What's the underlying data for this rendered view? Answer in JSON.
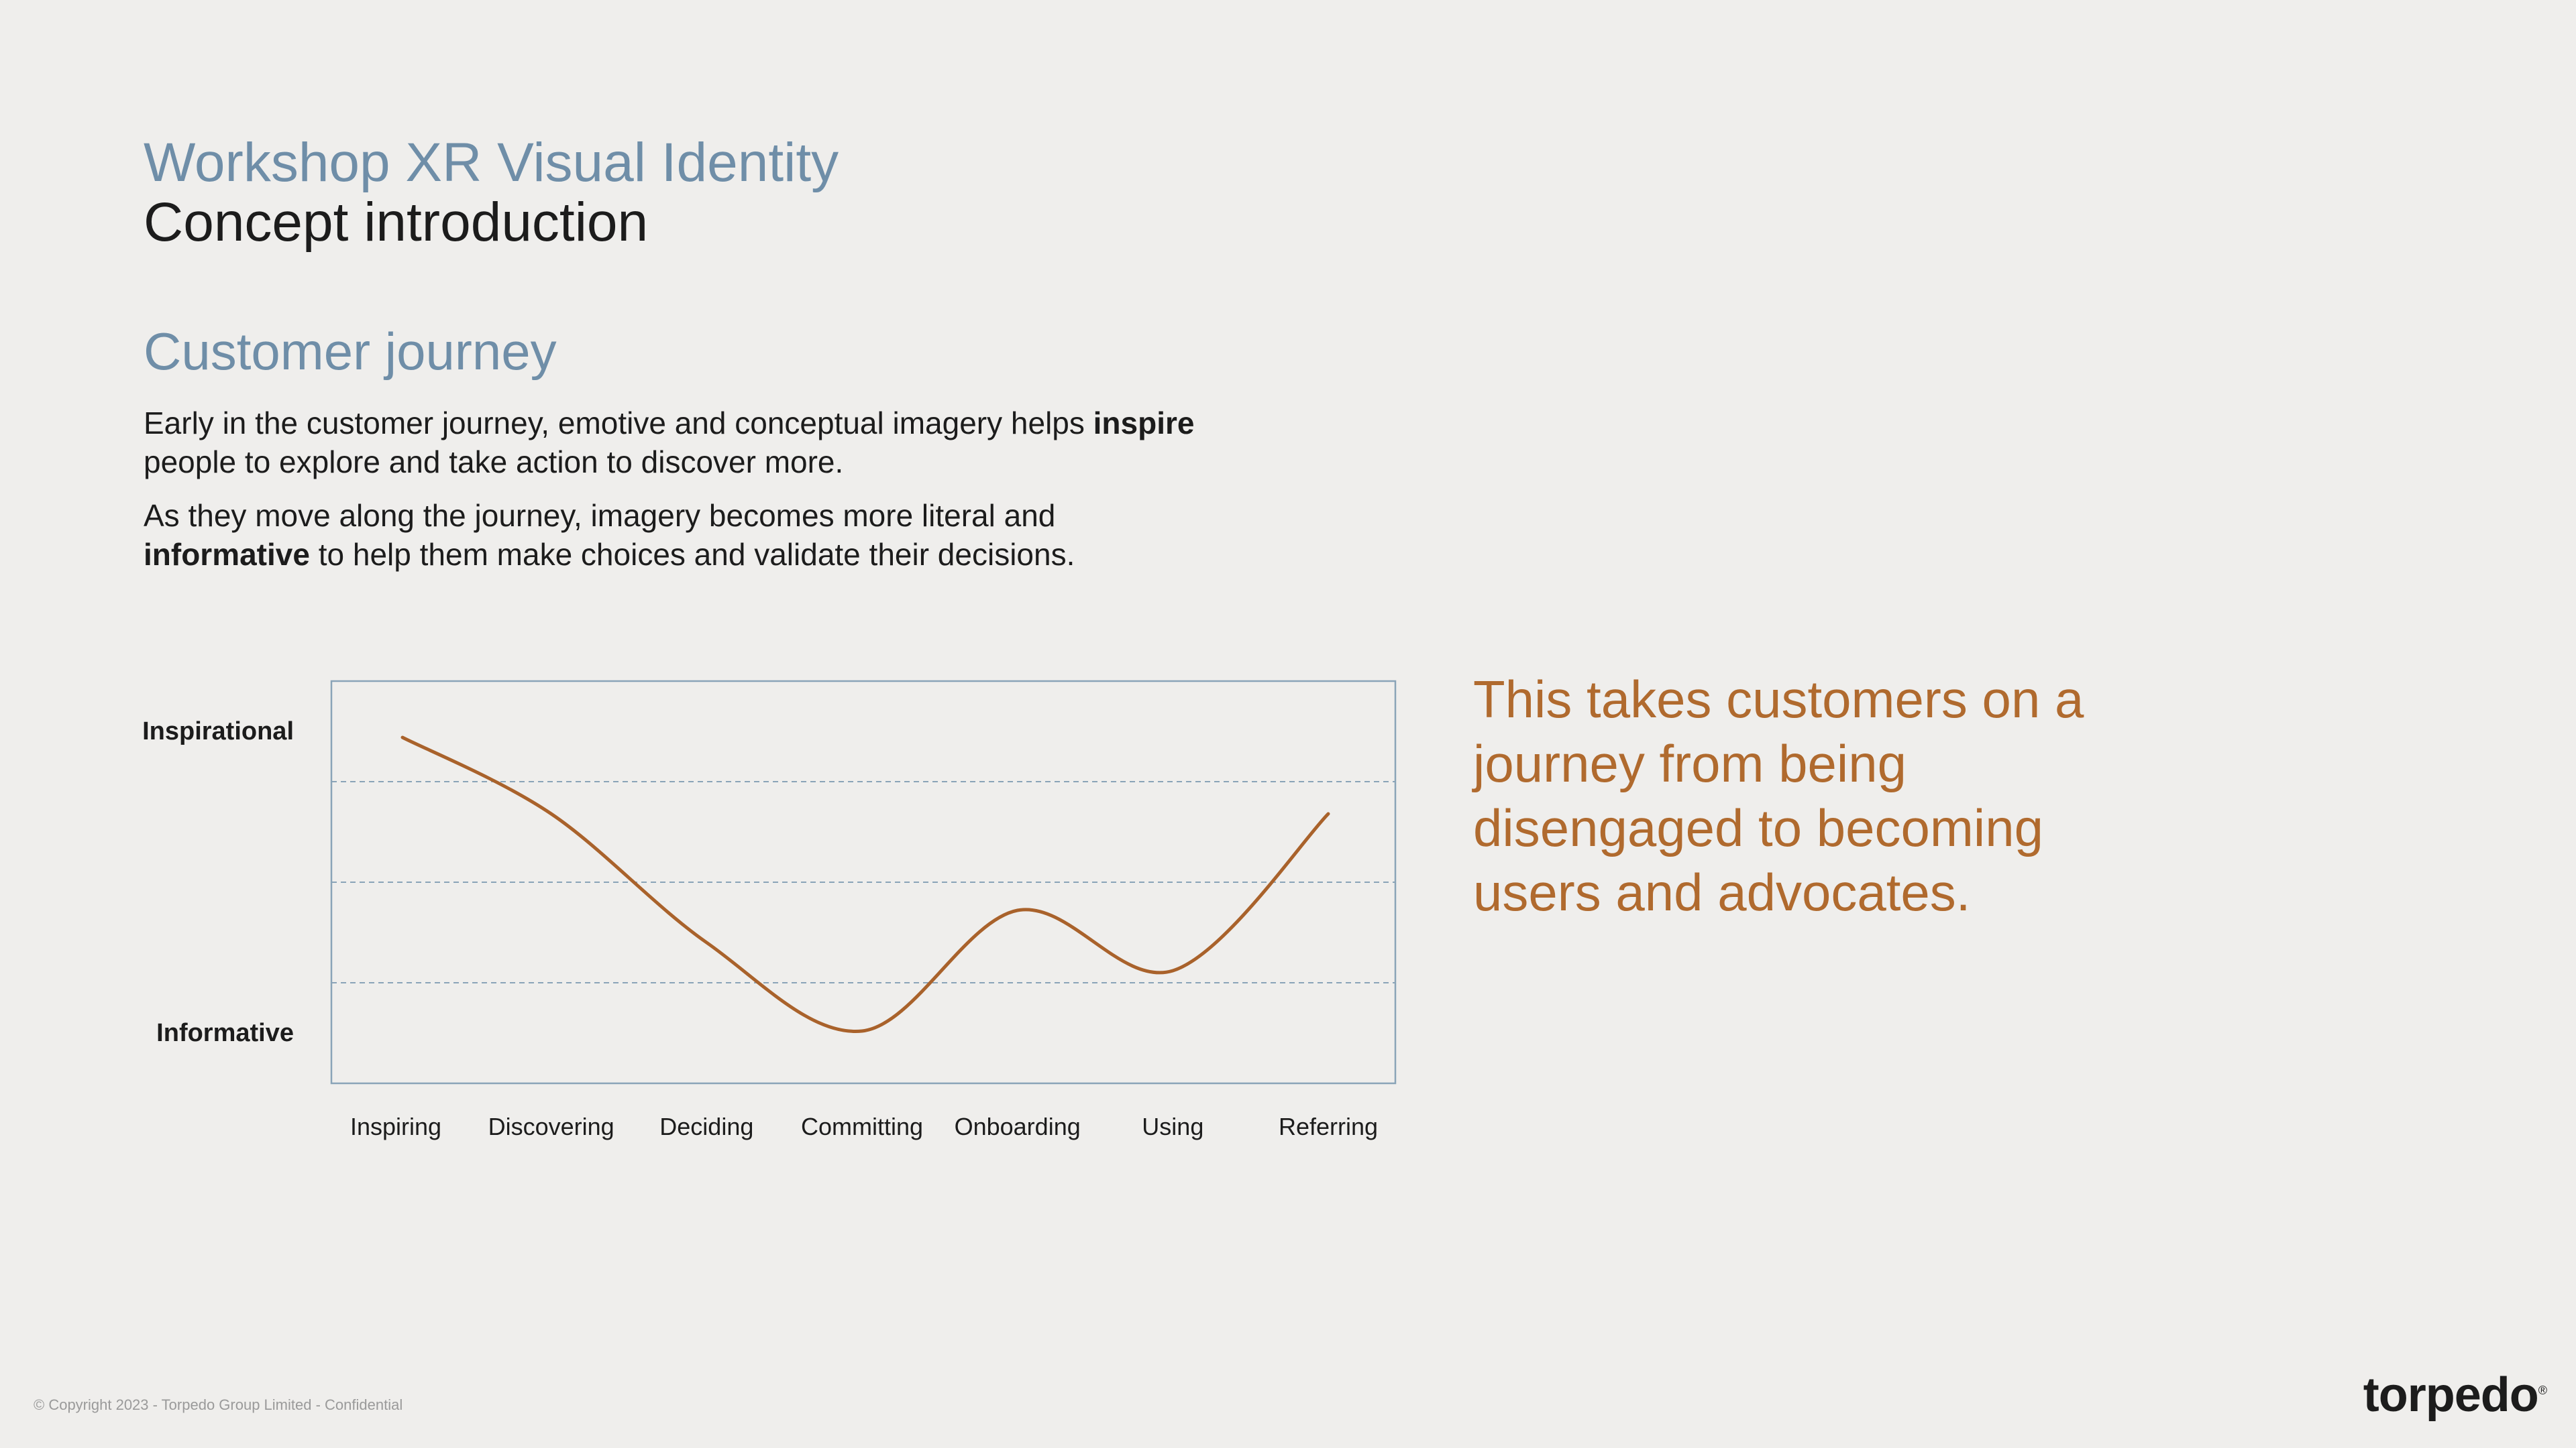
{
  "header": {
    "title": "Workshop XR Visual Identity",
    "subtitle": "Concept introduction"
  },
  "section": {
    "heading": "Customer journey",
    "para1_pre": "Early in the customer journey, emotive and conceptual imagery helps ",
    "para1_bold": "inspire",
    "para1_post": " people to explore and take action to discover more.",
    "para2_bold": "informative",
    "para2_pre": "As they move along the journey, imagery becomes more literal and ",
    "para2_post": " to help them make choices and validate their decisions."
  },
  "callout": "This takes customers on a journey from being disengaged to becoming users and advocates.",
  "chart_data": {
    "type": "line",
    "categories": [
      "Inspiring",
      "Discovering",
      "Deciding",
      "Committing",
      "Onboarding",
      "Using",
      "Referring"
    ],
    "y_labels": {
      "top": "Inspirational",
      "bottom": "Informative"
    },
    "series": [
      {
        "values": [
          0.86,
          0.67,
          0.35,
          0.13,
          0.43,
          0.28,
          0.67
        ]
      }
    ],
    "ylim": [
      0,
      1
    ],
    "grid": "horizontal dashed",
    "line_color": "#a9622b",
    "frame_color": "#8aa4b8"
  },
  "footer": {
    "copyright": "© Copyright 2023 - Torpedo Group Limited - Confidential",
    "logo": "torpedo"
  }
}
